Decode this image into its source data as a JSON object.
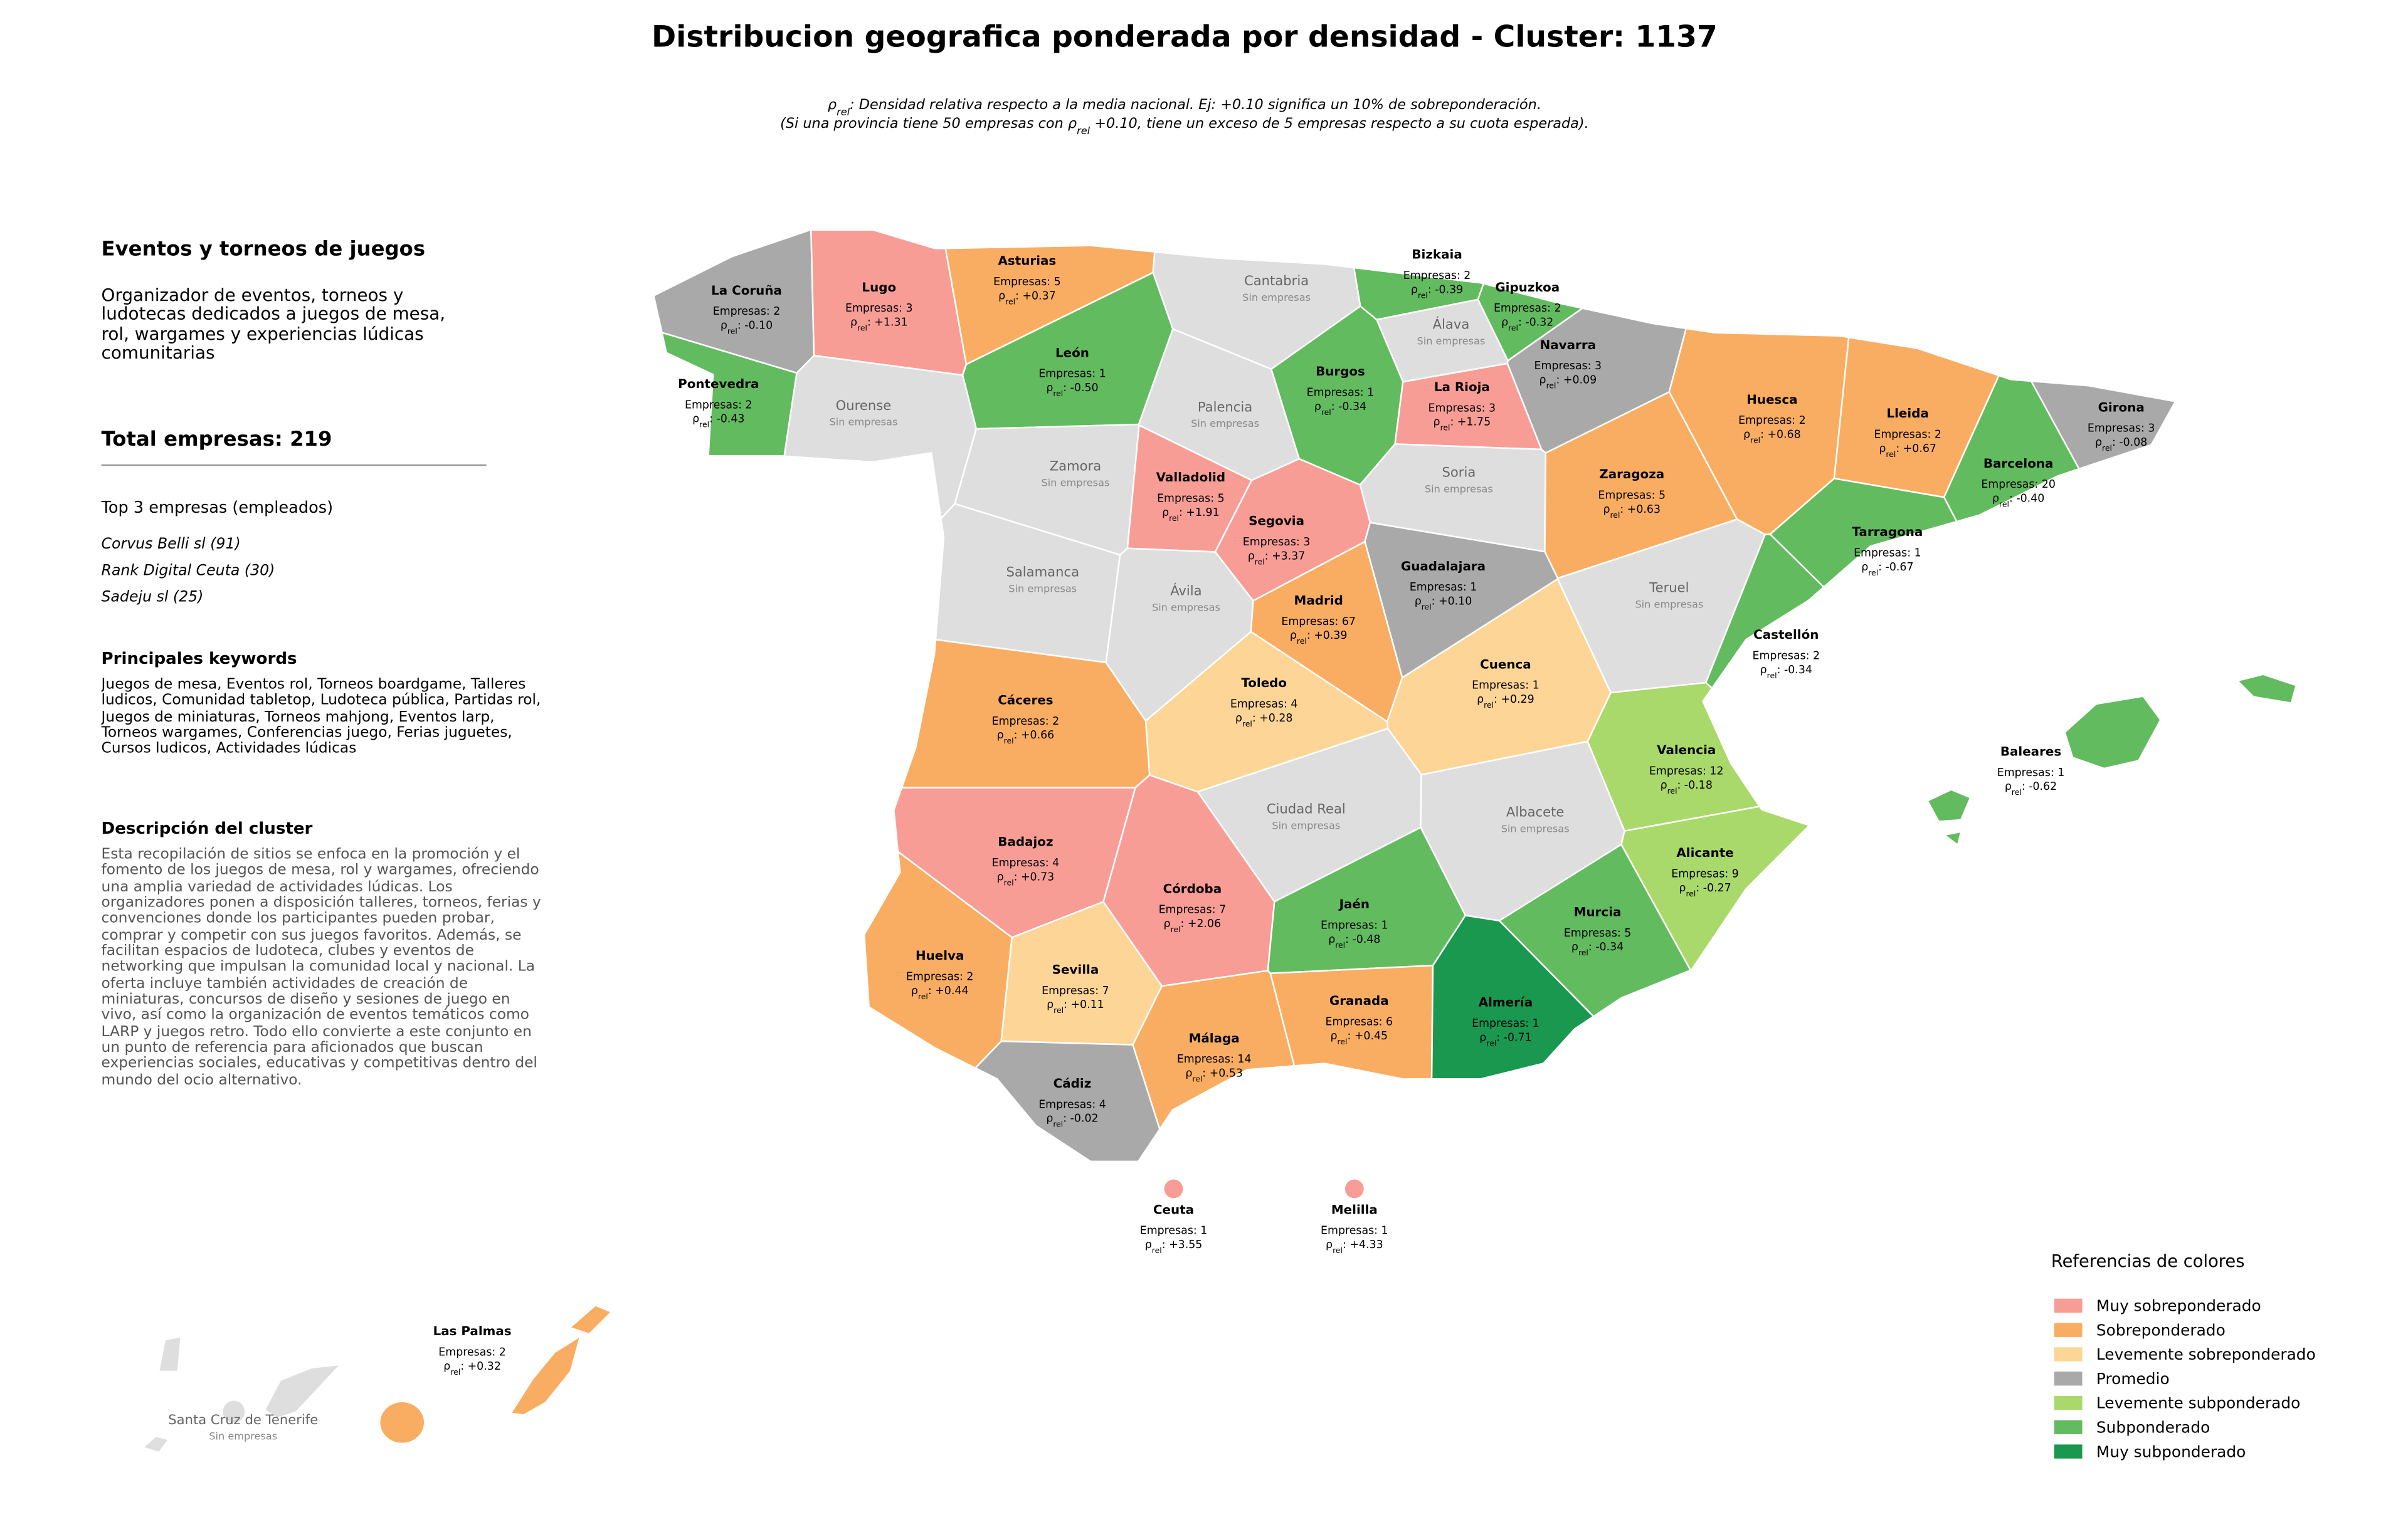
{
  "title": "Distribucion geografica ponderada por densidad - Cluster: 1137",
  "subtitle": {
    "line1": [
      {
        "text": "ρ"
      },
      {
        "text": "rel",
        "sub": true
      },
      {
        "text": ": Densidad relativa respecto a la media nacional. Ej: +0.10 significa un 10% de sobreponderación."
      }
    ],
    "line2": [
      {
        "text": "(Si una provincia tiene 50 empresas con ρ"
      },
      {
        "text": "rel",
        "sub": true
      },
      {
        "text": " +0.10, tiene un exceso de 5 empresas respecto a su cuota esperada)."
      }
    ]
  },
  "sidebar": {
    "heading": "Eventos y torneos de juegos",
    "intro": "Organizador de eventos, torneos y ludotecas dedicados a juegos de mesa, rol, wargames y experiencias lúdicas comunitarias",
    "total": "Total empresas: 219",
    "top_heading": "Top 3 empresas (empleados)",
    "top": [
      "Corvus Belli sl (91)",
      "Rank Digital Ceuta (30)",
      "Sadeju sl (25)"
    ],
    "keywords_heading": "Principales keywords",
    "keywords": "Juegos de mesa, Eventos rol, Torneos boardgame, Talleres ludicos, Comunidad tabletop, Ludoteca pública, Partidas rol, Juegos de miniaturas, Torneos mahjong, Eventos larp, Torneos wargames, Conferencias juego, Ferias juguetes, Cursos ludicos, Actividades lúdicas",
    "description_heading": "Descripción del cluster",
    "description": "Esta recopilación de sitios se enfoca en la promoción y el fomento de los juegos de mesa, rol y wargames, ofreciendo una amplia variedad de actividades lúdicas. Los organizadores ponen a disposición talleres, torneos, ferias y convenciones donde los participantes pueden probar, comprar y competir con sus juegos favoritos. Además, se facilitan espacios de ludoteca, clubes y eventos de networking que impulsan la comunidad local y nacional. La oferta incluye también actividades de creación de miniaturas, concursos de diseño y sesiones de juego en vivo, así como la organización de eventos temáticos como LARP y juegos retro. Todo ello convierte a este conjunto en un punto de referencia para aficionados que buscan experiencias sociales, educativas y competitivas dentro del mundo del ocio alternativo."
  },
  "rho_symbol": "ρ",
  "rho_sub": "rel",
  "rho_sep": ": ",
  "empty_color": "#dedede",
  "provinces": [
    {
      "name": "La Coruña",
      "count": "Empresas: 2",
      "rho": "-0.10",
      "color": "#a9a9a9"
    },
    {
      "name": "Lugo",
      "count": "Empresas: 3",
      "rho": "+1.31",
      "color": "#f89d96"
    },
    {
      "name": "Asturias",
      "count": "Empresas: 5",
      "rho": "+0.37",
      "color": "#f9ad62"
    },
    {
      "name": "Cantabria",
      "empty": "Sin empresas"
    },
    {
      "name": "Bizkaia",
      "count": "Empresas: 2",
      "rho": "-0.39",
      "color": "#63bb5f"
    },
    {
      "name": "Gipuzkoa",
      "count": "Empresas: 2",
      "rho": "-0.32",
      "color": "#63bb5f"
    },
    {
      "name": "Álava",
      "empty": "Sin empresas"
    },
    {
      "name": "Navarra",
      "count": "Empresas: 3",
      "rho": "+0.09",
      "color": "#a9a9a9"
    },
    {
      "name": "León",
      "count": "Empresas: 1",
      "rho": "-0.50",
      "color": "#63bb5f"
    },
    {
      "name": "Pontevedra",
      "count": "Empresas: 2",
      "rho": "-0.43",
      "color": "#63bb5f"
    },
    {
      "name": "Ourense",
      "empty": "Sin empresas"
    },
    {
      "name": "Palencia",
      "empty": "Sin empresas"
    },
    {
      "name": "Burgos",
      "count": "Empresas: 1",
      "rho": "-0.34",
      "color": "#63bb5f"
    },
    {
      "name": "La Rioja",
      "count": "Empresas: 3",
      "rho": "+1.75",
      "color": "#f89d96"
    },
    {
      "name": "Huesca",
      "count": "Empresas: 2",
      "rho": "+0.68",
      "color": "#f9ad62"
    },
    {
      "name": "Lleida",
      "count": "Empresas: 2",
      "rho": "+0.67",
      "color": "#f9ad62"
    },
    {
      "name": "Girona",
      "count": "Empresas: 3",
      "rho": "-0.08",
      "color": "#a9a9a9"
    },
    {
      "name": "Zamora",
      "empty": "Sin empresas"
    },
    {
      "name": "Valladolid",
      "count": "Empresas: 5",
      "rho": "+1.91",
      "color": "#f89d96"
    },
    {
      "name": "Soria",
      "empty": "Sin empresas"
    },
    {
      "name": "Zaragoza",
      "count": "Empresas: 5",
      "rho": "+0.63",
      "color": "#f9ad62"
    },
    {
      "name": "Barcelona",
      "count": "Empresas: 20",
      "rho": "-0.40",
      "color": "#63bb5f"
    },
    {
      "name": "Segovia",
      "count": "Empresas: 3",
      "rho": "+3.37",
      "color": "#f89d96"
    },
    {
      "name": "Tarragona",
      "count": "Empresas: 1",
      "rho": "-0.67",
      "color": "#63bb5f"
    },
    {
      "name": "Salamanca",
      "empty": "Sin empresas"
    },
    {
      "name": "Guadalajara",
      "count": "Empresas: 1",
      "rho": "+0.10",
      "color": "#a9a9a9"
    },
    {
      "name": "Ávila",
      "empty": "Sin empresas"
    },
    {
      "name": "Madrid",
      "count": "Empresas: 67",
      "rho": "+0.39",
      "color": "#f9ad62"
    },
    {
      "name": "Teruel",
      "empty": "Sin empresas"
    },
    {
      "name": "Castellón",
      "count": "Empresas: 2",
      "rho": "-0.34",
      "color": "#63bb5f"
    },
    {
      "name": "Cuenca",
      "count": "Empresas: 1",
      "rho": "+0.29",
      "color": "#fdd596"
    },
    {
      "name": "Toledo",
      "count": "Empresas: 4",
      "rho": "+0.28",
      "color": "#fdd596"
    },
    {
      "name": "Cáceres",
      "count": "Empresas: 2",
      "rho": "+0.66",
      "color": "#f9ad62"
    },
    {
      "name": "Baleares",
      "count": "Empresas: 1",
      "rho": "-0.62",
      "color": "#63bb5f"
    },
    {
      "name": "Valencia",
      "count": "Empresas: 12",
      "rho": "-0.18",
      "color": "#a9d96b"
    },
    {
      "name": "Ciudad Real",
      "empty": "Sin empresas"
    },
    {
      "name": "Albacete",
      "empty": "Sin empresas"
    },
    {
      "name": "Badajoz",
      "count": "Empresas: 4",
      "rho": "+0.73",
      "color": "#f89d96"
    },
    {
      "name": "Alicante",
      "count": "Empresas: 9",
      "rho": "-0.27",
      "color": "#a9d96b"
    },
    {
      "name": "Córdoba",
      "count": "Empresas: 7",
      "rho": "+2.06",
      "color": "#f89d96"
    },
    {
      "name": "Jaén",
      "count": "Empresas: 1",
      "rho": "-0.48",
      "color": "#63bb5f"
    },
    {
      "name": "Murcia",
      "count": "Empresas: 5",
      "rho": "-0.34",
      "color": "#63bb5f"
    },
    {
      "name": "Huelva",
      "count": "Empresas: 2",
      "rho": "+0.44",
      "color": "#f9ad62"
    },
    {
      "name": "Sevilla",
      "count": "Empresas: 7",
      "rho": "+0.11",
      "color": "#fdd596"
    },
    {
      "name": "Granada",
      "count": "Empresas: 6",
      "rho": "+0.45",
      "color": "#f9ad62"
    },
    {
      "name": "Almería",
      "count": "Empresas: 1",
      "rho": "-0.71",
      "color": "#1a9850"
    },
    {
      "name": "Málaga",
      "count": "Empresas: 14",
      "rho": "+0.53",
      "color": "#f9ad62"
    },
    {
      "name": "Cádiz",
      "count": "Empresas: 4",
      "rho": "-0.02",
      "color": "#a9a9a9"
    },
    {
      "name": "Ceuta",
      "count": "Empresas: 1",
      "rho": "+3.55",
      "color": "#f89d96"
    },
    {
      "name": "Melilla",
      "count": "Empresas: 1",
      "rho": "+4.33",
      "color": "#f89d96"
    },
    {
      "name": "Las Palmas",
      "count": "Empresas: 2",
      "rho": "+0.32",
      "color": "#f9ad62"
    },
    {
      "name": "Santa Cruz de Tenerife",
      "empty": "Sin empresas"
    }
  ],
  "legend": {
    "title": "Referencias de colores",
    "items": [
      {
        "label": "Muy sobreponderado",
        "color": "#f89d96"
      },
      {
        "label": "Sobreponderado",
        "color": "#f9ad62"
      },
      {
        "label": "Levemente sobreponderado",
        "color": "#fdd596"
      },
      {
        "label": "Promedio",
        "color": "#a9a9a9"
      },
      {
        "label": "Levemente subponderado",
        "color": "#a9d96b"
      },
      {
        "label": "Subponderado",
        "color": "#63bb5f"
      },
      {
        "label": "Muy subponderado",
        "color": "#1a9850"
      }
    ]
  }
}
